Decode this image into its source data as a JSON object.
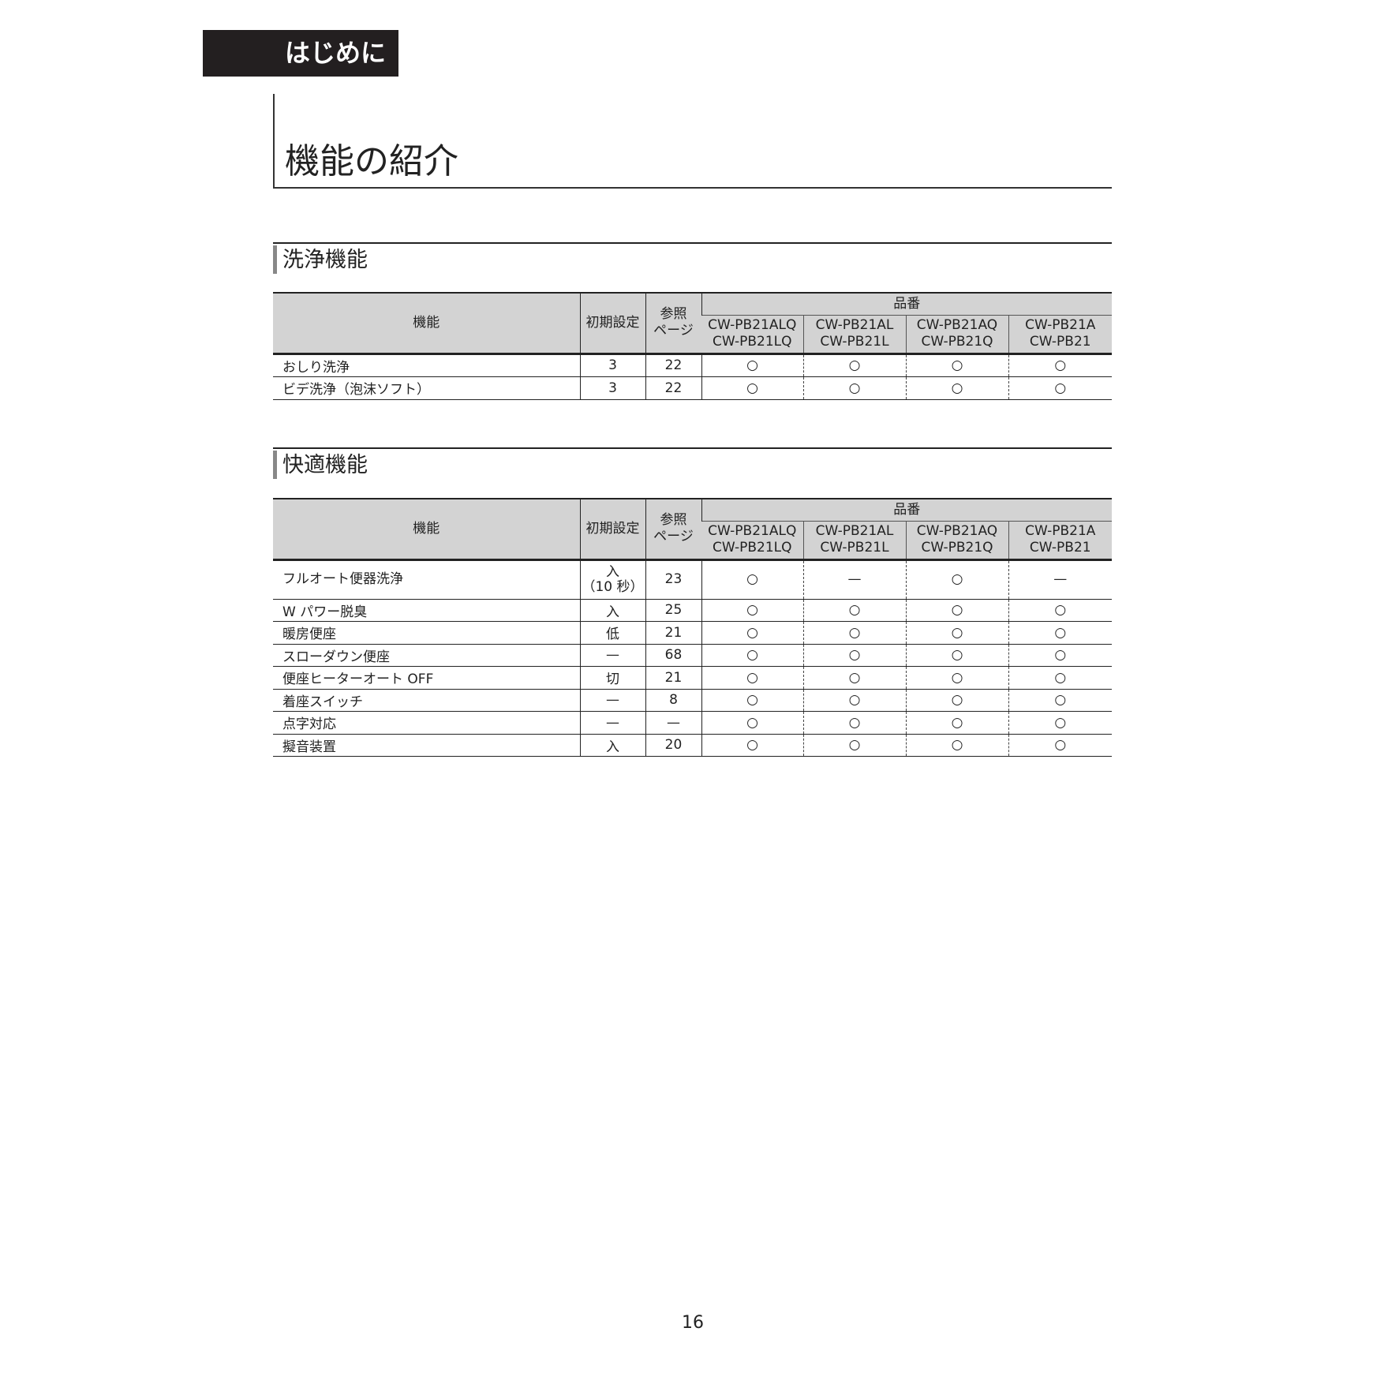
{
  "chapter": "はじめに",
  "page_title": "機能の紹介",
  "headers": {
    "feature": "機能",
    "initial": "初期設定",
    "ref_page_1": "参照",
    "ref_page_2": "ページ",
    "model_group": "品番",
    "models": [
      [
        "CW-PB21ALQ",
        "CW-PB21LQ"
      ],
      [
        "CW-PB21AL",
        "CW-PB21L"
      ],
      [
        "CW-PB21AQ",
        "CW-PB21Q"
      ],
      [
        "CW-PB21A",
        "CW-PB21"
      ]
    ]
  },
  "sections": [
    {
      "title": "洗浄機能",
      "rows": [
        {
          "feature": "おしり洗浄",
          "initial": "3",
          "page": "22",
          "marks": [
            "○",
            "○",
            "○",
            "○"
          ]
        },
        {
          "feature": "ビデ洗浄（泡沫ソフト）",
          "initial": "3",
          "page": "22",
          "marks": [
            "○",
            "○",
            "○",
            "○"
          ]
        }
      ]
    },
    {
      "title": "快適機能",
      "rows": [
        {
          "feature": "フルオート便器洗浄",
          "initial": "入",
          "initial2": "（10 秒）",
          "page": "23",
          "marks": [
            "○",
            "—",
            "○",
            "—"
          ]
        },
        {
          "feature": "W パワー脱臭",
          "initial": "入",
          "page": "25",
          "marks": [
            "○",
            "○",
            "○",
            "○"
          ]
        },
        {
          "feature": "暖房便座",
          "initial": "低",
          "page": "21",
          "marks": [
            "○",
            "○",
            "○",
            "○"
          ]
        },
        {
          "feature": "スローダウン便座",
          "initial": "—",
          "page": "68",
          "marks": [
            "○",
            "○",
            "○",
            "○"
          ]
        },
        {
          "feature": "便座ヒーターオート OFF",
          "initial": "切",
          "page": "21",
          "marks": [
            "○",
            "○",
            "○",
            "○"
          ]
        },
        {
          "feature": "着座スイッチ",
          "initial": "—",
          "page": "8",
          "marks": [
            "○",
            "○",
            "○",
            "○"
          ]
        },
        {
          "feature": "点字対応",
          "initial": "—",
          "page": "—",
          "marks": [
            "○",
            "○",
            "○",
            "○"
          ]
        },
        {
          "feature": "擬音装置",
          "initial": "入",
          "page": "20",
          "marks": [
            "○",
            "○",
            "○",
            "○"
          ]
        }
      ]
    }
  ],
  "page_number": "16"
}
